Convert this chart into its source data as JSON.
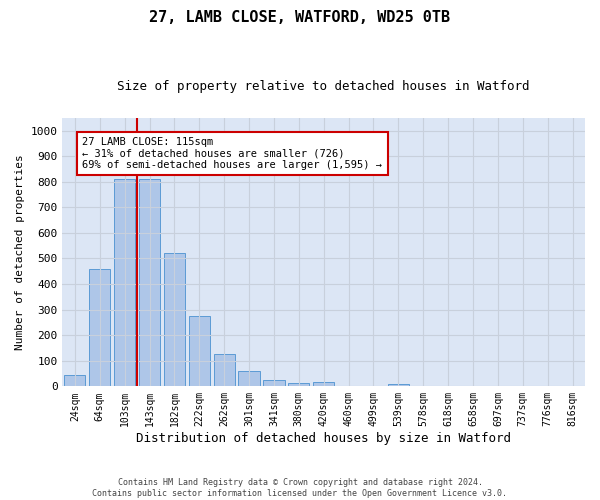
{
  "title1": "27, LAMB CLOSE, WATFORD, WD25 0TB",
  "title2": "Size of property relative to detached houses in Watford",
  "xlabel": "Distribution of detached houses by size in Watford",
  "ylabel": "Number of detached properties",
  "categories": [
    "24sqm",
    "64sqm",
    "103sqm",
    "143sqm",
    "182sqm",
    "222sqm",
    "262sqm",
    "301sqm",
    "341sqm",
    "380sqm",
    "420sqm",
    "460sqm",
    "499sqm",
    "539sqm",
    "578sqm",
    "618sqm",
    "658sqm",
    "697sqm",
    "737sqm",
    "776sqm",
    "816sqm"
  ],
  "values": [
    45,
    460,
    810,
    810,
    520,
    275,
    125,
    58,
    25,
    12,
    15,
    0,
    0,
    10,
    0,
    0,
    0,
    0,
    0,
    0,
    0
  ],
  "bar_color": "#aec6e8",
  "bar_edge_color": "#5b9bd5",
  "vline_color": "#cc0000",
  "annotation_line1": "27 LAMB CLOSE: 115sqm",
  "annotation_line2": "← 31% of detached houses are smaller (726)",
  "annotation_line3": "69% of semi-detached houses are larger (1,595) →",
  "annotation_box_color": "#ffffff",
  "annotation_box_edge": "#cc0000",
  "ylim": [
    0,
    1050
  ],
  "yticks": [
    0,
    100,
    200,
    300,
    400,
    500,
    600,
    700,
    800,
    900,
    1000
  ],
  "grid_color": "#c8d0dc",
  "bg_color": "#dce6f5",
  "fig_bg_color": "#ffffff",
  "footnote": "Contains HM Land Registry data © Crown copyright and database right 2024.\nContains public sector information licensed under the Open Government Licence v3.0."
}
